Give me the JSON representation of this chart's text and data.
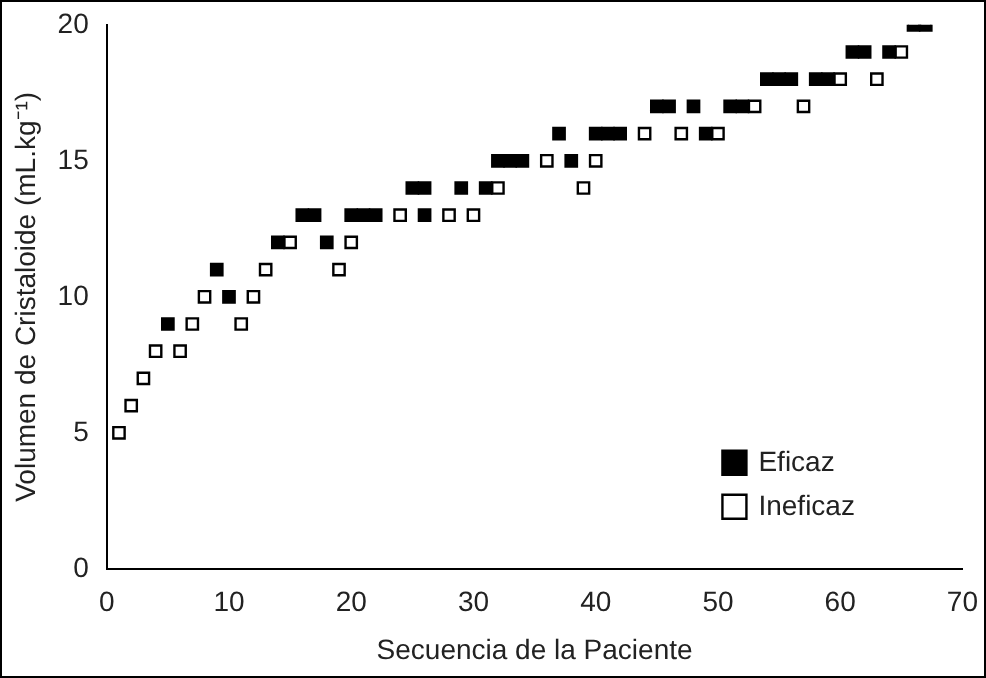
{
  "chart_data": {
    "type": "scatter",
    "xlabel": "Secuencia de la Paciente",
    "ylabel": "Volumen de Cristaloide (mL.kg⁻¹)",
    "xlim": [
      0,
      70
    ],
    "xticks": [
      0,
      10,
      20,
      30,
      40,
      50,
      60,
      70
    ],
    "ylim": [
      0,
      20
    ],
    "yticks": [
      0,
      5,
      10,
      15,
      20
    ],
    "grid": false,
    "legend": "bottom right",
    "marker": "square",
    "series": [
      {
        "name": "Eficaz",
        "color": "#000000",
        "x": [
          5,
          9,
          10,
          14,
          16,
          17,
          18,
          20,
          21,
          22,
          25,
          26,
          26,
          29,
          31,
          32,
          33,
          34,
          37,
          38,
          40,
          41,
          42,
          45,
          46,
          48,
          49,
          51,
          52,
          54,
          55,
          56,
          58,
          59,
          61,
          62,
          64,
          66,
          67
        ],
        "values": [
          9,
          11,
          10,
          12,
          13,
          13,
          12,
          13,
          13,
          13,
          14,
          14,
          13,
          14,
          14,
          15,
          15,
          15,
          16,
          15,
          16,
          16,
          16,
          17,
          17,
          17,
          16,
          17,
          17,
          18,
          18,
          18,
          18,
          18,
          19,
          19,
          19,
          20,
          20
        ]
      },
      {
        "name": "Ineficaz",
        "color": "#ffffff",
        "x": [
          1,
          2,
          3,
          4,
          6,
          7,
          11,
          8,
          12,
          13,
          19,
          15,
          20,
          24,
          28,
          30,
          32,
          39,
          36,
          40,
          44,
          47,
          50,
          53,
          57,
          60,
          63,
          65
        ],
        "values": [
          5,
          6,
          7,
          8,
          8,
          9,
          9,
          10,
          10,
          11,
          11,
          12,
          12,
          13,
          13,
          13,
          14,
          14,
          15,
          15,
          16,
          16,
          16,
          17,
          17,
          18,
          18,
          19
        ]
      }
    ]
  }
}
